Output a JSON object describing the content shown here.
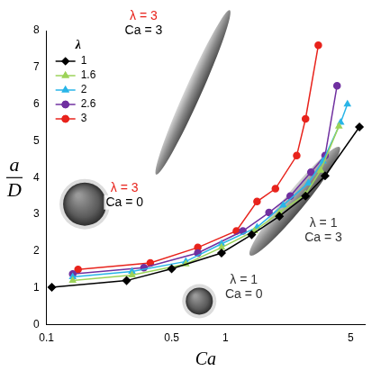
{
  "chart_data": {
    "type": "line",
    "x_label": "Ca",
    "y_label": {
      "numerator": "a",
      "denominator": "D"
    },
    "log": "x",
    "grid": false,
    "legend": "upper left",
    "legend_title": "λ",
    "xlim": [
      0.1,
      6
    ],
    "xticks": [
      0.1,
      0.5,
      1,
      5
    ],
    "ylim": [
      0,
      8
    ],
    "yticks": [
      0,
      1,
      2,
      3,
      4,
      5,
      6,
      7,
      8
    ],
    "series": [
      {
        "name": "1",
        "color": "#000000",
        "marker": "diamond",
        "x": [
          0.107,
          0.28,
          0.5,
          0.95,
          1.4,
          2.0,
          2.8,
          3.6,
          5.6
        ],
        "values": [
          1.02,
          1.2,
          1.52,
          1.95,
          2.45,
          2.95,
          3.5,
          4.05,
          5.38
        ]
      },
      {
        "name": "1.6",
        "color": "#9dd35a",
        "marker": "triangle",
        "x": [
          0.14,
          0.3,
          0.6,
          0.95,
          1.45,
          2.0,
          2.8,
          3.4,
          4.3
        ],
        "values": [
          1.2,
          1.35,
          1.65,
          2.1,
          2.55,
          3.05,
          3.55,
          4.2,
          5.4
        ]
      },
      {
        "name": "2",
        "color": "#29b5e8",
        "marker": "triangle",
        "x": [
          0.14,
          0.3,
          0.6,
          0.95,
          1.5,
          2.1,
          2.9,
          3.5,
          4.4,
          4.8
        ],
        "values": [
          1.3,
          1.45,
          1.72,
          2.2,
          2.65,
          3.25,
          3.85,
          4.45,
          5.5,
          6.0
        ]
      },
      {
        "name": "2.6",
        "color": "#7030a0",
        "marker": "circle",
        "x": [
          0.14,
          0.35,
          0.7,
          1.25,
          1.75,
          2.3,
          3.0,
          3.6,
          4.2
        ],
        "values": [
          1.38,
          1.55,
          1.95,
          2.55,
          3.05,
          3.5,
          4.15,
          4.6,
          6.5
        ]
      },
      {
        "name": "3",
        "color": "#e8231c",
        "marker": "circle",
        "x": [
          0.15,
          0.38,
          0.7,
          1.15,
          1.5,
          1.9,
          2.5,
          2.8,
          3.3
        ],
        "values": [
          1.5,
          1.68,
          2.1,
          2.55,
          3.35,
          3.7,
          4.6,
          5.6,
          7.6
        ]
      }
    ],
    "annotations": [
      {
        "lines": [
          "λ = 3",
          "Ca = 3"
        ],
        "colors": [
          "#e8231c",
          "#000000"
        ]
      },
      {
        "lines": [
          "λ = 3",
          "Ca = 0"
        ],
        "colors": [
          "#e8231c",
          "#000000"
        ]
      },
      {
        "lines": [
          "λ = 1",
          "Ca = 3"
        ],
        "colors": [
          "#333333",
          "#333333"
        ]
      },
      {
        "lines": [
          "λ = 1",
          "Ca = 0"
        ],
        "colors": [
          "#333333",
          "#333333"
        ]
      }
    ]
  }
}
